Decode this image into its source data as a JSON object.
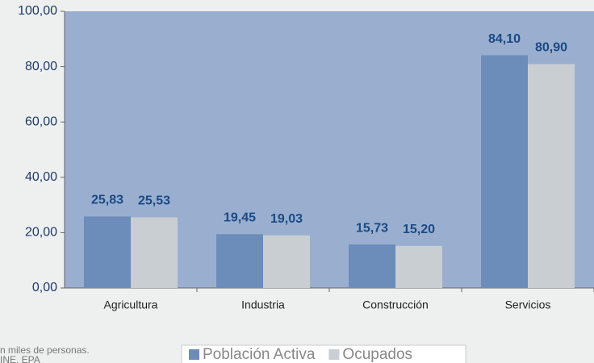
{
  "chart_data": {
    "type": "bar",
    "categories": [
      "Agricultura",
      "Industria",
      "Construcción",
      "Servicios"
    ],
    "series": [
      {
        "name": "Población Activa",
        "color": "#6c8cba",
        "values": [
          25.83,
          19.45,
          15.73,
          84.1
        ],
        "value_labels": [
          "25,83",
          "19,45",
          "15,73",
          "84,10"
        ]
      },
      {
        "name": "Ocupados",
        "color": "#c9ced2",
        "values": [
          25.53,
          19.03,
          15.2,
          80.9
        ],
        "value_labels": [
          "25,53",
          "19,03",
          "15,20",
          "80,90"
        ]
      }
    ],
    "ylim": [
      0,
      100
    ],
    "yticks": [
      {
        "value": 0,
        "label": "0,00"
      },
      {
        "value": 20,
        "label": "20,00"
      },
      {
        "value": 40,
        "label": "40,00"
      },
      {
        "value": 60,
        "label": "60,00"
      },
      {
        "value": 80,
        "label": "80,00"
      },
      {
        "value": 100,
        "label": "100,00"
      }
    ],
    "notes": [
      "n miles de personas.",
      "INE. EPA"
    ],
    "legend": "bottom"
  }
}
